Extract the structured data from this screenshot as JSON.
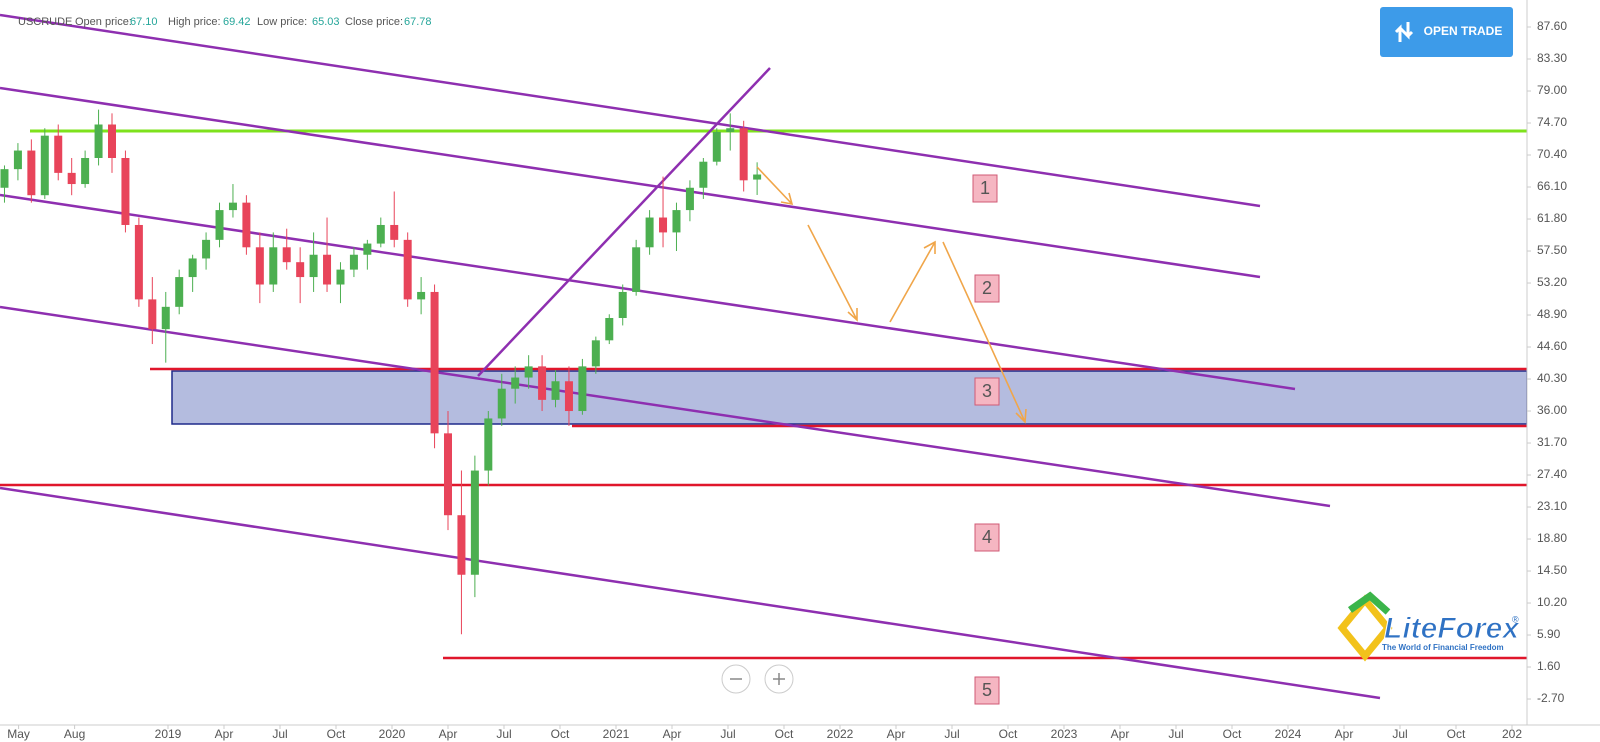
{
  "chart_data": {
    "type": "candlestick",
    "symbol": "USCRUDE",
    "info": [
      {
        "label": "Open price:",
        "value": "67.10"
      },
      {
        "label": "High price:",
        "value": "69.42"
      },
      {
        "label": "Low price:",
        "value": "65.03"
      },
      {
        "label": "Close price:",
        "value": "67.78"
      }
    ],
    "up_color": "#4caf50",
    "down_color": "#e8445a",
    "candles": {
      "x": [
        2018.27,
        2018.33,
        2018.39,
        2018.45,
        2018.51,
        2018.57,
        2018.63,
        2018.69,
        2018.75,
        2018.81,
        2018.87,
        2018.93,
        2018.99,
        2019.05,
        2019.11,
        2019.17,
        2019.23,
        2019.29,
        2019.35,
        2019.41,
        2019.47,
        2019.53,
        2019.59,
        2019.65,
        2019.71,
        2019.77,
        2019.83,
        2019.89,
        2019.95,
        2020.01,
        2020.07,
        2020.13,
        2020.19,
        2020.25,
        2020.31,
        2020.37,
        2020.43,
        2020.49,
        2020.55,
        2020.61,
        2020.67,
        2020.73,
        2020.79,
        2020.85,
        2020.91,
        2020.97,
        2021.03,
        2021.09,
        2021.15,
        2021.21,
        2021.27,
        2021.33,
        2021.39,
        2021.45,
        2021.51,
        2021.57,
        2021.63
      ],
      "open": [
        66,
        68.5,
        71,
        65,
        73,
        68,
        66.5,
        70,
        74.5,
        70,
        61,
        51,
        47,
        50,
        54,
        56.5,
        59,
        63,
        64,
        58,
        53,
        58,
        56,
        54,
        57,
        53,
        55,
        57,
        58.5,
        61,
        59,
        51,
        52,
        33,
        22,
        14,
        28,
        35,
        39,
        40.5,
        42,
        37.5,
        40,
        36,
        42,
        45.5,
        48.5,
        52,
        58,
        62,
        60,
        63,
        66,
        69.5,
        73.5,
        74,
        67.1
      ],
      "high": [
        69,
        72,
        72.5,
        74,
        74.5,
        70,
        71,
        76.5,
        76,
        71,
        62,
        54,
        52,
        55,
        57,
        60,
        64,
        66.5,
        65,
        60,
        60,
        60.5,
        58,
        60,
        62,
        56,
        58,
        59,
        62,
        65.5,
        60,
        54,
        53,
        36,
        28,
        30,
        36,
        41,
        42,
        43.5,
        43.5,
        41.5,
        42,
        43,
        46,
        49,
        53,
        59,
        63,
        67.5,
        64,
        67,
        70,
        74,
        76,
        75,
        69.42
      ],
      "low": [
        64,
        67,
        64,
        64.5,
        67,
        65,
        66,
        69,
        68,
        60,
        50,
        45,
        42.5,
        49,
        52,
        55,
        58,
        62,
        57,
        50.5,
        52,
        55,
        50.5,
        52,
        52,
        50.5,
        54,
        55,
        58,
        58,
        50,
        49,
        31,
        20,
        6,
        11,
        26,
        34,
        37,
        39,
        36,
        36.5,
        34,
        35.5,
        41,
        45,
        47.5,
        51.5,
        57,
        58,
        57.5,
        61.5,
        64.5,
        69,
        71,
        65.5,
        65.03
      ],
      "close": [
        68.5,
        71,
        65,
        73,
        68,
        66.5,
        70,
        74.5,
        70,
        61,
        51,
        47,
        50,
        54,
        56.5,
        59,
        63,
        64,
        58,
        53,
        58,
        56,
        54,
        57,
        53,
        55,
        57,
        58.5,
        61,
        59,
        51,
        52,
        33,
        22,
        14,
        28,
        35,
        39,
        40.5,
        42,
        37.5,
        40,
        36,
        42,
        45.5,
        48.5,
        52,
        58,
        62,
        60,
        63,
        66,
        69.5,
        73.5,
        74,
        67,
        67.78
      ]
    },
    "xlim": [
      2018.25,
      2025.067
    ],
    "xticks": [
      {
        "value": 2018.333,
        "label": "May"
      },
      {
        "value": 2018.583,
        "label": "Aug"
      },
      2019,
      {
        "value": 2019.25,
        "label": "Apr"
      },
      {
        "value": 2019.5,
        "label": "Jul"
      },
      {
        "value": 2019.75,
        "label": "Oct"
      },
      2020,
      {
        "value": 2020.25,
        "label": "Apr"
      },
      {
        "value": 2020.5,
        "label": "Jul"
      },
      {
        "value": 2020.75,
        "label": "Oct"
      },
      2021,
      {
        "value": 2021.25,
        "label": "Apr"
      },
      {
        "value": 2021.5,
        "label": "Jul"
      },
      {
        "value": 2021.75,
        "label": "Oct"
      },
      2022,
      {
        "value": 2022.25,
        "label": "Apr"
      },
      {
        "value": 2022.5,
        "label": "Jul"
      },
      {
        "value": 2022.75,
        "label": "Oct"
      },
      2023,
      {
        "value": 2023.25,
        "label": "Apr"
      },
      {
        "value": 2023.5,
        "label": "Jul"
      },
      {
        "value": 2023.75,
        "label": "Oct"
      },
      2024,
      {
        "value": 2024.25,
        "label": "Apr"
      },
      {
        "value": 2024.5,
        "label": "Jul"
      },
      {
        "value": 2024.75,
        "label": "Oct"
      },
      {
        "value": 2025,
        "label": "202"
      }
    ],
    "ylim": [
      -6.19,
      91.23
    ],
    "yticks": [
      {
        "value": 87.6,
        "label": "87.60"
      },
      {
        "value": 83.3,
        "label": "83.30"
      },
      {
        "value": 79,
        "label": "79.00"
      },
      {
        "value": 74.7,
        "label": "74.70"
      },
      {
        "value": 70.4,
        "label": "70.40"
      },
      {
        "value": 66.1,
        "label": "66.10"
      },
      {
        "value": 61.8,
        "label": "61.80"
      },
      {
        "value": 57.5,
        "label": "57.50"
      },
      {
        "value": 53.2,
        "label": "53.20"
      },
      {
        "value": 48.9,
        "label": "48.90"
      },
      {
        "value": 44.6,
        "label": "44.60"
      },
      {
        "value": 40.3,
        "label": "40.30"
      },
      {
        "value": 36,
        "label": "36.00"
      },
      {
        "value": 31.7,
        "label": "31.70"
      },
      {
        "value": 27.4,
        "label": "27.40"
      },
      {
        "value": 23.1,
        "label": "23.10"
      },
      {
        "value": 18.8,
        "label": "18.80"
      },
      {
        "value": 14.5,
        "label": "14.50"
      },
      {
        "value": 10.2,
        "label": "10.20"
      },
      {
        "value": 5.9,
        "label": "5.90"
      },
      {
        "value": 1.6,
        "label": "1.60"
      },
      {
        "value": -2.7,
        "label": "-2.70"
      }
    ],
    "annotations": [
      "1",
      "2",
      "3",
      "4",
      "5"
    ]
  },
  "ui": {
    "button": "OPEN TRADE",
    "brand": "LiteForex",
    "brand_mark": "®",
    "tagline": "The World of Financial Freedom"
  }
}
